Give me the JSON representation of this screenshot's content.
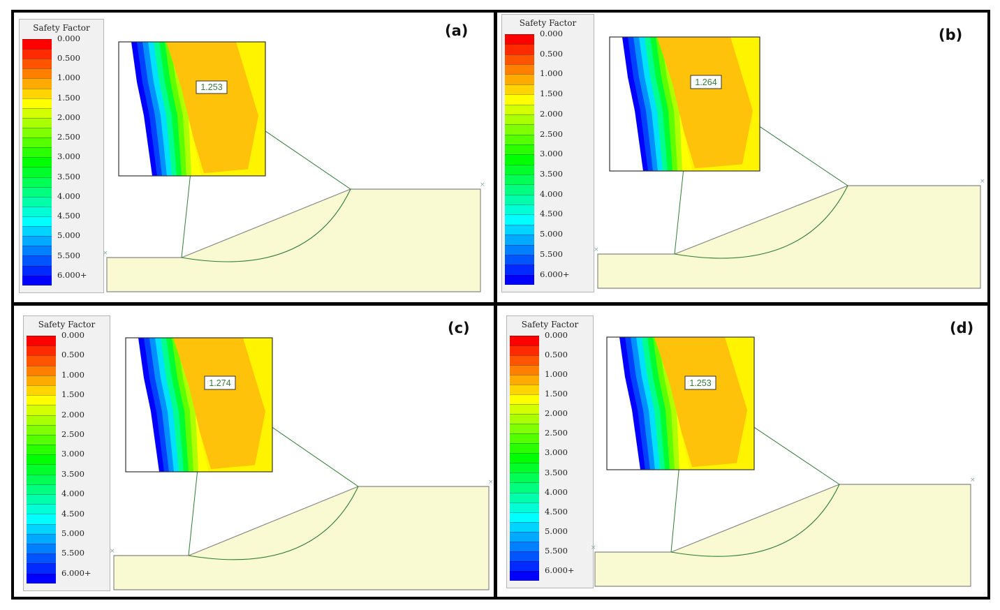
{
  "legend": {
    "title": "Safety Factor",
    "labels": [
      "0.000",
      "0.500",
      "1.000",
      "1.500",
      "2.000",
      "2.500",
      "3.000",
      "3.500",
      "4.000",
      "4.500",
      "5.000",
      "5.500",
      "6.000+"
    ],
    "colors": [
      "#ff0000",
      "#ff2a00",
      "#ff5500",
      "#ff7f00",
      "#ffaa00",
      "#ffd400",
      "#ffff00",
      "#d4ff00",
      "#aaff00",
      "#7fff00",
      "#55ff00",
      "#2aff00",
      "#00ff00",
      "#00ff2a",
      "#00ff55",
      "#00ff7f",
      "#00ffaa",
      "#00ffd4",
      "#00ffff",
      "#00d4ff",
      "#00aaff",
      "#007fff",
      "#0055ff",
      "#002aff",
      "#0000ff"
    ]
  },
  "panels": [
    {
      "label": "(a)",
      "factor": "1.253"
    },
    {
      "label": "(b)",
      "factor": "1.264"
    },
    {
      "label": "(c)",
      "factor": "1.274"
    },
    {
      "label": "(d)",
      "factor": "1.253"
    }
  ],
  "colors": {
    "soil": "#fafad2",
    "soil_edge": "#888888",
    "slip_line": "#2e7d32",
    "zoom_orange": "#fec20b",
    "zoom_yellow": "#ffff00"
  }
}
